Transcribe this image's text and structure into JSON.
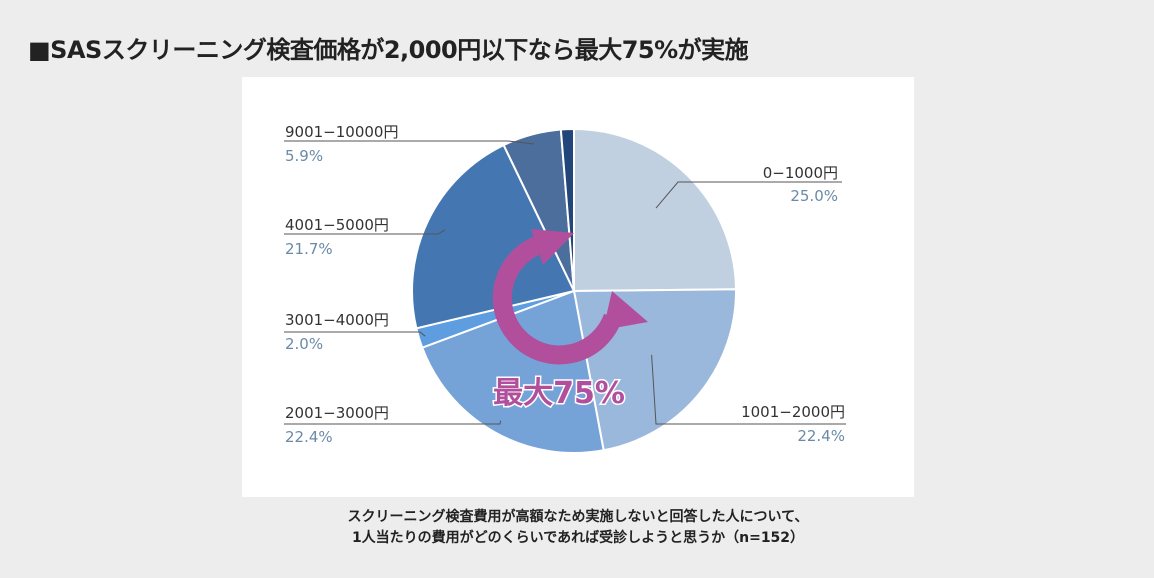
{
  "page": {
    "title": "■SASスクリーニング検査価格が2,000円以下なら最大75%が実施",
    "caption_line1": "スクリーニング検査費用が高額なため実施しないと回答した人について、",
    "caption_line2": "1人当たりの費用がどのくらいであれば受診しようと思うか（n=152）"
  },
  "chart_data": {
    "type": "pie",
    "slices": [
      {
        "label": "0−1000円",
        "value_text": "25.0%",
        "value": 25.0,
        "color": "#c0d0e1"
      },
      {
        "label": "1001−2000円",
        "value_text": "22.4%",
        "value": 22.4,
        "color": "#9ab8dc"
      },
      {
        "label": "2001−3000円",
        "value_text": "22.4%",
        "value": 22.4,
        "color": "#76a3d7"
      },
      {
        "label": "3001−4000円",
        "value_text": "2.0%",
        "value": 2.0,
        "color": "#5d9de0"
      },
      {
        "label": "4001−5000円",
        "value_text": "21.7%",
        "value": 21.7,
        "color": "#4477b1"
      },
      {
        "label": "9001−10000円",
        "value_text": "5.9%",
        "value": 5.9,
        "color": "#4b6e9d"
      },
      {
        "label": "",
        "value_text": "",
        "value": 1.3,
        "color": "#22467a"
      }
    ],
    "annotation": {
      "text": "最大75%",
      "color": "#b14f9c"
    }
  }
}
